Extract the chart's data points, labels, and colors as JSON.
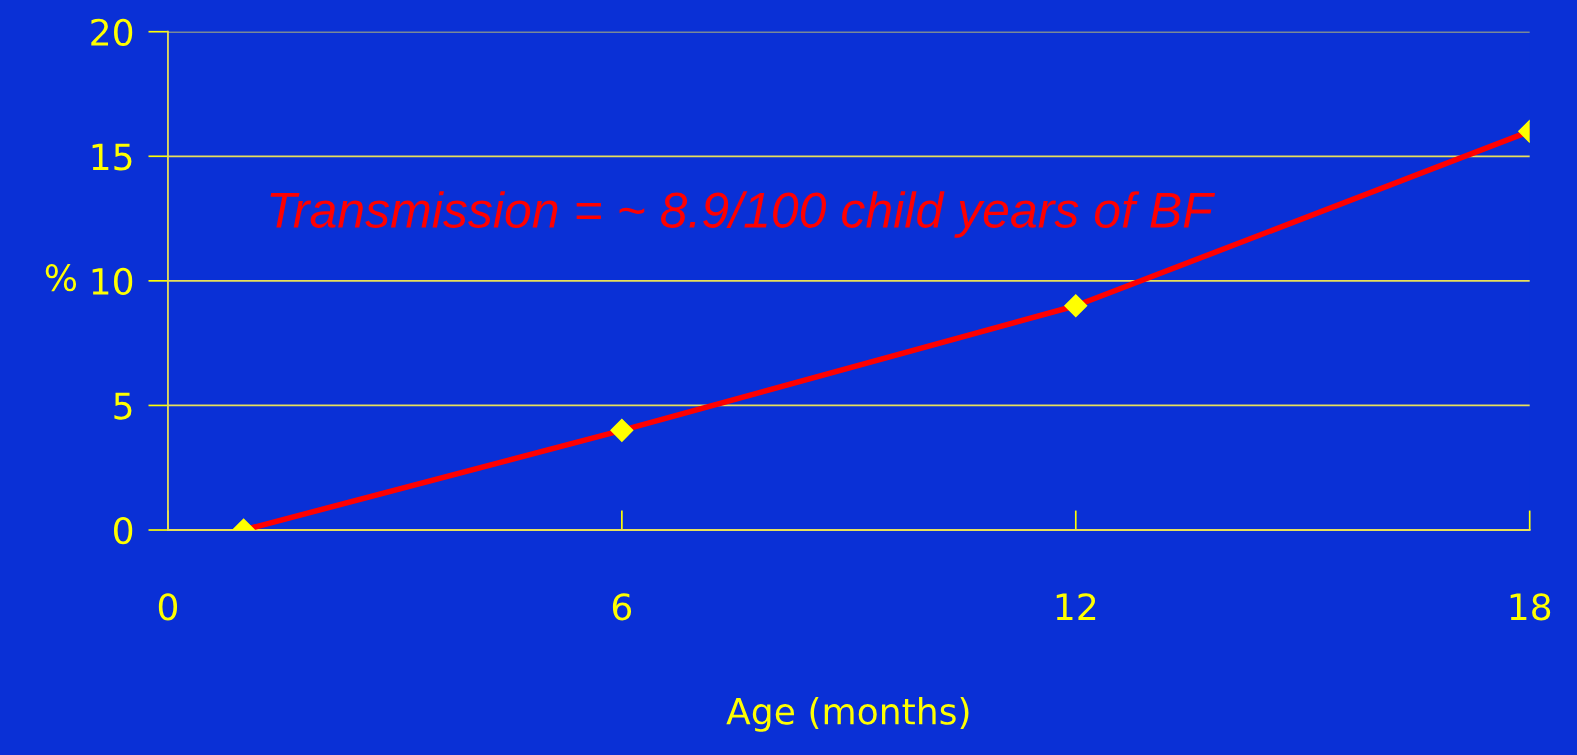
{
  "chart_data": {
    "type": "line",
    "xlabel": "Age (months)",
    "ylabel": "%",
    "x": [
      1,
      6,
      12,
      18
    ],
    "series": [
      {
        "color": "#ff0000",
        "values": [
          0,
          4,
          9,
          16
        ]
      }
    ],
    "marker": "diamond",
    "line_style": "solid",
    "xlim": [
      0,
      18
    ],
    "xticks": [
      0,
      6,
      12,
      18
    ],
    "ylim": [
      0,
      20
    ],
    "yticks": [
      0,
      5,
      10,
      15,
      20
    ],
    "grid": "y",
    "legend": false,
    "annotations": [
      "Transmission = ~ 8.9/100 child years of BF"
    ]
  }
}
